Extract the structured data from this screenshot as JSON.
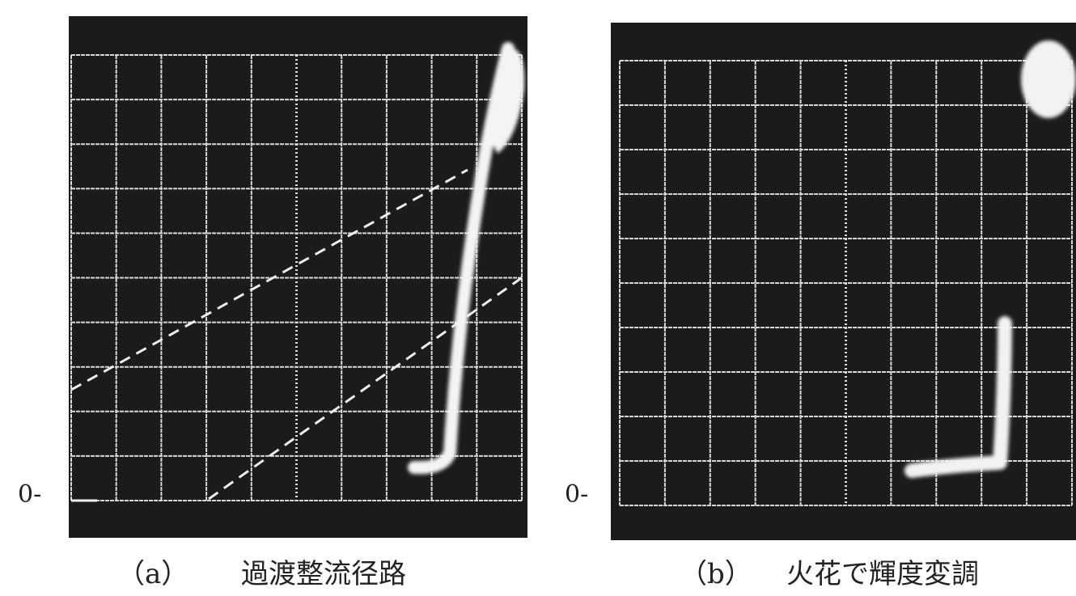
{
  "panels": [
    {
      "zero_label": "0-",
      "caption": {
        "label": "（a）",
        "text": "過渡整流径路"
      }
    },
    {
      "zero_label": "0-",
      "caption": {
        "label": "（b）",
        "text": "火花で輝度変調"
      }
    }
  ]
}
